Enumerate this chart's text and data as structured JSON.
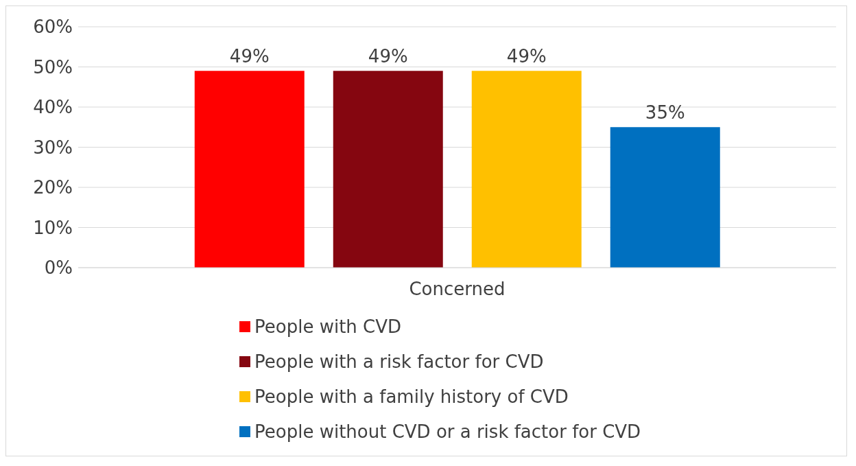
{
  "chart_data": {
    "type": "bar",
    "categories": [
      "Concerned"
    ],
    "series": [
      {
        "name": "People with CVD",
        "color": "#ff0000",
        "values": [
          49
        ],
        "value_labels": [
          "49%"
        ]
      },
      {
        "name": "People with a risk factor for CVD",
        "color": "#850610",
        "values": [
          49
        ],
        "value_labels": [
          "49%"
        ]
      },
      {
        "name": "People with a family history of CVD",
        "color": "#ffc000",
        "values": [
          49
        ],
        "value_labels": [
          "49%"
        ]
      },
      {
        "name": "People without CVD or a risk factor for CVD",
        "color": "#0070c0",
        "values": [
          35
        ],
        "value_labels": [
          "35%"
        ]
      }
    ],
    "ylim": [
      0,
      60
    ],
    "yticks": [
      {
        "value": 0,
        "label": "0%"
      },
      {
        "value": 10,
        "label": "10%"
      },
      {
        "value": 20,
        "label": "20%"
      },
      {
        "value": 30,
        "label": "30%"
      },
      {
        "value": 40,
        "label": "40%"
      },
      {
        "value": 50,
        "label": "50%"
      },
      {
        "value": 60,
        "label": "60%"
      }
    ],
    "grid": "y",
    "legend": "bottom"
  }
}
